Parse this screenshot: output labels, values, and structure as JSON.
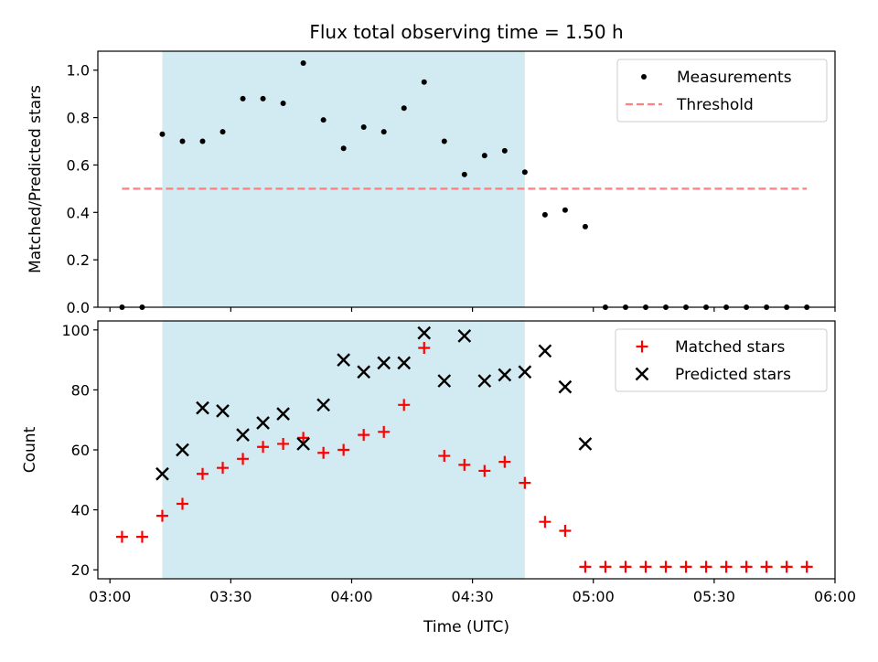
{
  "chart_data": {
    "title": "Flux total observing time = 1.50 h",
    "xlabel": "Time (UTC)",
    "x_ticks": [
      "03:00",
      "03:30",
      "04:00",
      "04:30",
      "05:00",
      "05:30",
      "06:00"
    ],
    "x_range": [
      "02:57",
      "06:00"
    ],
    "shaded_interval": [
      "03:13",
      "04:43"
    ],
    "colors": {
      "shade": "#add8e6",
      "threshold": "#ff7f7f",
      "measurements": "#000000",
      "matched": "#ff0000",
      "predicted": "#000000"
    },
    "times": [
      "03:03",
      "03:08",
      "03:13",
      "03:18",
      "03:23",
      "03:28",
      "03:33",
      "03:38",
      "03:43",
      "03:48",
      "03:53",
      "03:58",
      "04:03",
      "04:08",
      "04:13",
      "04:18",
      "04:23",
      "04:28",
      "04:33",
      "04:38",
      "04:43",
      "04:48",
      "04:53",
      "04:58",
      "05:03",
      "05:08",
      "05:13",
      "05:18",
      "05:23",
      "05:28",
      "05:33",
      "05:38",
      "05:43",
      "05:48",
      "05:53"
    ],
    "panels": [
      {
        "type": "scatter",
        "ylabel": "Matched/Predicted stars",
        "ylim": [
          0,
          1.08
        ],
        "yticks": [
          "0.0",
          "0.2",
          "0.4",
          "0.6",
          "0.8",
          "1.0"
        ],
        "ytick_values": [
          0,
          0.2,
          0.4,
          0.6,
          0.8,
          1.0
        ],
        "legend_position": "top-right",
        "series": [
          {
            "name": "Measurements",
            "marker": "dot",
            "values": [
              0,
              0,
              0.73,
              0.7,
              0.7,
              0.74,
              0.88,
              0.88,
              0.86,
              1.03,
              0.79,
              0.67,
              0.76,
              0.74,
              0.84,
              0.95,
              0.7,
              0.56,
              0.64,
              0.66,
              0.57,
              0.39,
              0.41,
              0.34,
              0,
              0,
              0,
              0,
              0,
              0,
              0,
              0,
              0,
              0,
              0
            ]
          },
          {
            "name": "Threshold",
            "marker": "dashed-line",
            "value": 0.5,
            "x_from": "03:03",
            "x_to": "05:53"
          }
        ]
      },
      {
        "type": "scatter",
        "ylabel": "Count",
        "ylim": [
          17,
          103
        ],
        "yticks": [
          "20",
          "40",
          "60",
          "80",
          "100"
        ],
        "ytick_values": [
          20,
          40,
          60,
          80,
          100
        ],
        "legend_position": "top-right",
        "series": [
          {
            "name": "Matched stars",
            "marker": "plus",
            "values": [
              31,
              31,
              38,
              42,
              52,
              54,
              57,
              61,
              62,
              64,
              59,
              60,
              65,
              66,
              75,
              94,
              58,
              55,
              53,
              56,
              49,
              36,
              33,
              21,
              21,
              21,
              21,
              21,
              21,
              21,
              21,
              21,
              21,
              21,
              21
            ]
          },
          {
            "name": "Predicted stars",
            "marker": "x",
            "values": [
              null,
              null,
              52,
              60,
              74,
              73,
              65,
              69,
              72,
              62,
              75,
              90,
              86,
              89,
              89,
              99,
              83,
              98,
              83,
              85,
              86,
              93,
              81,
              62,
              null,
              null,
              null,
              null,
              null,
              null,
              null,
              null,
              null,
              null,
              null
            ]
          }
        ]
      }
    ]
  }
}
